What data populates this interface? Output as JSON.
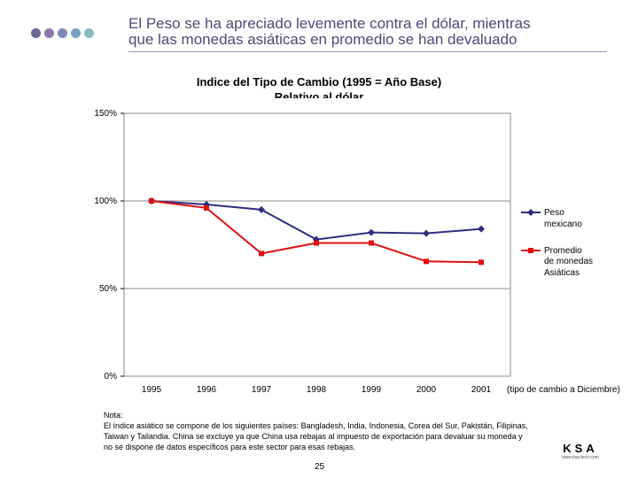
{
  "header": {
    "title_line1": "El Peso se ha apreciado levemente contra el dólar, mientras",
    "title_line2": "que las monedas asiáticas en promedio se han devaluado",
    "dot_colors": [
      "#6a6a9a",
      "#8a7aaa",
      "#7a8ab8",
      "#7aa0c0",
      "#8ab8c8"
    ]
  },
  "chart_data": {
    "type": "line",
    "title": "Indice del Tipo de Cambio (1995 = Año Base)",
    "subtitle": "Relativo al dólar",
    "categories": [
      "1995",
      "1996",
      "1997",
      "1998",
      "1999",
      "2000",
      "2001"
    ],
    "x_annotation": "(tipo de cambio a Diciembre)",
    "yticks": [
      "0%",
      "50%",
      "100%",
      "150%"
    ],
    "ylim": [
      0,
      150
    ],
    "grid": "horizontal",
    "legend_position": "right",
    "series": [
      {
        "name": "Peso mexicano",
        "color": "#2e2e7e",
        "marker": "diamond",
        "values": [
          100,
          98,
          95,
          78,
          82,
          81.5,
          84
        ]
      },
      {
        "name": "Promedio de monedas Asiáticas",
        "color": "#e01010",
        "marker": "square",
        "values": [
          100,
          96,
          70,
          76,
          76,
          65.5,
          65
        ]
      }
    ]
  },
  "legend": {
    "peso_line1": "Peso",
    "peso_line2": "mexicano",
    "asia_line1": "Promedio",
    "asia_line2": "de monedas",
    "asia_line3": "Asiáticas"
  },
  "note": {
    "label": "Nota:",
    "text": "El índice asiático se compone de los siguientes países:  Bangladesh, India, Indonesia, Corea del Sur, Pakistán, Filipinas, Taiwan y Tailandia. China se excluye ya que China usa rebajas al impuesto de exportación para devaluar su moneda y no se dispone de datos específicos para este sector para esas rebajas."
  },
  "page_number": "25",
  "logo": {
    "main": "KSA",
    "sub": "www.ksa-tech.com"
  }
}
